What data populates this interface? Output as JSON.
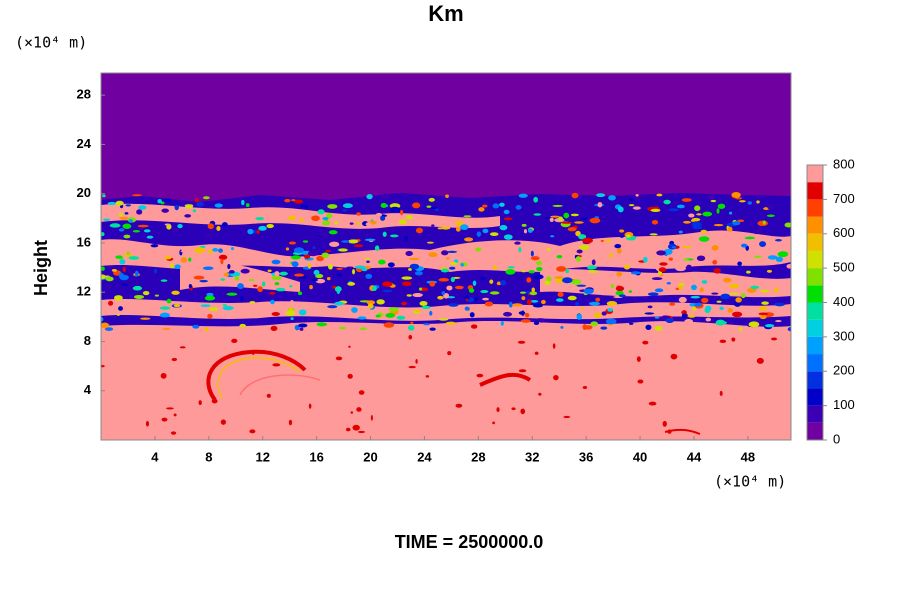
{
  "chart_data": {
    "type": "contour",
    "title": "Km",
    "y_unit": "(×10⁴ m)",
    "x_unit": "(×10⁴ m)",
    "ylabel": "Height",
    "annotation": "TIME = 2500000.0",
    "xlim": [
      0,
      51.2
    ],
    "xticks": [
      4,
      8,
      12,
      16,
      20,
      24,
      28,
      32,
      36,
      40,
      44,
      48
    ],
    "ylim": [
      0,
      29.8
    ],
    "yticks": [
      4,
      8,
      12,
      16,
      20,
      24,
      28
    ],
    "levels": [
      0,
      50,
      100,
      150,
      200,
      250,
      300,
      350,
      400,
      450,
      500,
      550,
      600,
      650,
      700,
      750,
      800
    ],
    "colors": [
      "#7000a0",
      "#3c00b4",
      "#0000c8",
      "#0030e0",
      "#0070ff",
      "#00a0ff",
      "#00d0e0",
      "#00e0a0",
      "#00e000",
      "#80e000",
      "#d0e000",
      "#f0c000",
      "#ff9000",
      "#ff4000",
      "#e00000",
      "#ff9a9a"
    ],
    "cticks": [
      0,
      100,
      200,
      300,
      400,
      500,
      600,
      700,
      800
    ]
  }
}
